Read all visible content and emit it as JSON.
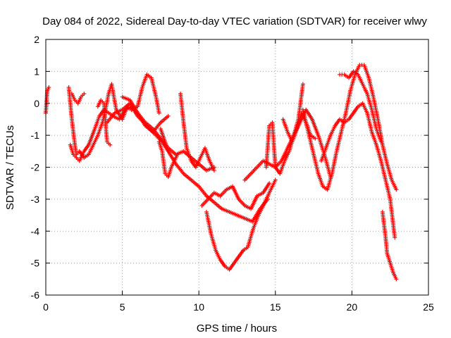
{
  "chart_data": {
    "type": "scatter",
    "title": "Day 084 of 2022, Sidereal Day-to-day VTEC variation (SDTVAR) for receiver wlwy",
    "xlabel": "GPS time / hours",
    "ylabel": "SDTVAR / TECUs",
    "xlim": [
      0,
      25
    ],
    "ylim": [
      -6,
      2
    ],
    "x_ticks": [
      "0",
      "5",
      "10",
      "15",
      "20",
      "25"
    ],
    "y_ticks": [
      "-6",
      "-5",
      "-4",
      "-3",
      "-2",
      "-1",
      "0",
      "1",
      "2"
    ],
    "grid": true,
    "marker": "plus",
    "color": "#ff0000",
    "series": [
      {
        "x": [
          0.0,
          0.1,
          0.2
        ],
        "y": [
          -0.3,
          0.4,
          0.5
        ]
      },
      {
        "x": [
          1.5,
          1.7,
          1.9,
          2.0,
          2.2,
          2.5,
          2.8,
          3.1,
          3.4,
          3.7,
          3.9,
          4.1,
          4.3,
          4.6,
          5.0,
          5.3,
          5.6,
          6.0,
          6.3,
          6.6,
          6.9,
          7.2,
          7.4
        ],
        "y": [
          0.5,
          -0.5,
          -1.3,
          -1.6,
          -1.5,
          -1.7,
          -1.6,
          -1.3,
          -1.0,
          -0.6,
          -0.2,
          0.3,
          0.6,
          -0.2,
          -0.5,
          -0.1,
          -0.2,
          -0.1,
          0.5,
          0.9,
          0.8,
          0.2,
          -0.3
        ]
      },
      {
        "x": [
          1.6,
          1.8,
          2.0,
          2.2,
          2.5,
          2.8,
          3.2,
          3.5,
          3.8,
          4.1,
          4.4,
          4.8,
          5.2,
          5.6,
          6.0,
          6.4,
          6.8,
          7.2,
          7.6,
          8.0
        ],
        "y": [
          -1.3,
          -1.6,
          -1.7,
          -1.8,
          -1.5,
          -1.3,
          -0.8,
          -0.4,
          -0.2,
          -0.3,
          -0.4,
          -0.5,
          -0.2,
          -0.1,
          -0.4,
          -0.6,
          -0.8,
          -1.0,
          -1.2,
          -1.5
        ]
      },
      {
        "x": [
          1.7,
          1.9,
          2.1,
          2.3,
          2.5
        ],
        "y": [
          0.3,
          0.1,
          0.0,
          0.2,
          0.3
        ]
      },
      {
        "x": [
          3.4,
          3.6,
          3.8,
          4.0,
          4.2
        ],
        "y": [
          -0.1,
          0.1,
          0.0,
          -1.2,
          -1.3
        ]
      },
      {
        "x": [
          5.0,
          5.5,
          6.0,
          6.5,
          7.0,
          7.5,
          8.0,
          8.5,
          9.0,
          9.5,
          10.0,
          10.5,
          11.0
        ],
        "y": [
          0.2,
          0.1,
          -0.3,
          -0.6,
          -0.8,
          -1.1,
          -1.4,
          -1.6,
          -1.5,
          -1.7,
          -1.9,
          -2.1,
          -2.0
        ]
      },
      {
        "x": [
          7.4,
          7.6,
          7.8,
          8.0,
          8.2,
          8.4,
          8.6
        ],
        "y": [
          -1.2,
          -1.5,
          -2.2,
          -2.3,
          -2.0,
          -1.8,
          -1.6
        ]
      },
      {
        "x": [
          8.8,
          9.0,
          9.2,
          9.5,
          9.8,
          10.1,
          10.4,
          10.7,
          11.0
        ],
        "y": [
          0.3,
          -0.6,
          -1.4,
          -1.8,
          -2.0,
          -1.7,
          -1.4,
          -1.8,
          -2.1
        ]
      },
      {
        "x": [
          7.5,
          8.0,
          8.5,
          9.0,
          9.5,
          10.0,
          10.5,
          11.0,
          11.5,
          12.0,
          12.5,
          13.0,
          13.5,
          14.0,
          14.5
        ],
        "y": [
          -0.8,
          -1.5,
          -1.9,
          -2.2,
          -2.4,
          -2.6,
          -2.9,
          -3.1,
          -3.3,
          -3.4,
          -3.5,
          -3.6,
          -3.7,
          -3.3,
          -3.0
        ]
      },
      {
        "x": [
          10.5,
          10.8,
          11.1,
          11.4,
          11.7,
          12.0,
          12.3,
          12.6,
          12.9,
          13.2,
          13.5,
          13.8,
          14.1,
          14.4,
          14.7,
          15.0
        ],
        "y": [
          -3.4,
          -4.1,
          -4.6,
          -4.9,
          -5.1,
          -5.2,
          -5.0,
          -4.8,
          -4.6,
          -4.5,
          -4.0,
          -3.6,
          -3.3,
          -3.0,
          -2.7,
          -2.4
        ]
      },
      {
        "x": [
          10.2,
          10.6,
          11.0,
          11.4,
          11.8,
          12.2,
          12.6,
          13.0,
          13.4,
          13.8,
          14.2,
          14.6
        ],
        "y": [
          -3.2,
          -3.0,
          -2.8,
          -2.9,
          -2.7,
          -2.6,
          -3.0,
          -3.2,
          -3.3,
          -2.9,
          -2.8,
          -2.5
        ]
      },
      {
        "x": [
          13.0,
          13.4,
          13.8,
          14.2,
          14.6,
          15.0,
          15.4,
          15.8,
          16.2,
          16.6,
          17.0,
          17.4,
          17.8,
          18.2,
          18.6
        ],
        "y": [
          -2.4,
          -2.2,
          -2.0,
          -1.8,
          -1.9,
          -2.0,
          -1.8,
          -1.4,
          -1.0,
          -0.6,
          -0.2,
          -0.5,
          -1.0,
          -1.6,
          -2.3
        ]
      },
      {
        "x": [
          14.4,
          14.6,
          14.8,
          15.0,
          15.3,
          15.6,
          15.9,
          16.2,
          16.5,
          16.8
        ],
        "y": [
          -2.0,
          -0.7,
          -0.6,
          -2.0,
          -2.2,
          -1.8,
          -1.5,
          -1.0,
          -0.5,
          0.6
        ]
      },
      {
        "x": [
          16.8,
          17.0,
          17.2,
          17.5,
          17.8,
          18.1,
          18.4,
          18.7,
          19.0,
          19.3,
          19.6,
          19.9,
          20.2,
          20.5,
          20.8,
          21.1,
          21.4,
          21.7,
          22.0,
          22.3,
          22.6,
          22.9
        ],
        "y": [
          -0.2,
          -0.6,
          -1.0,
          -1.6,
          -2.2,
          -2.6,
          -2.7,
          -2.2,
          -1.5,
          -0.9,
          -0.3,
          0.4,
          0.9,
          1.2,
          1.2,
          0.8,
          0.2,
          -0.5,
          -1.3,
          -1.9,
          -2.4,
          -2.7
        ]
      },
      {
        "x": [
          18.0,
          18.3,
          18.6,
          18.9,
          19.2,
          19.5,
          19.8,
          20.1,
          20.4,
          20.7,
          21.0,
          21.3,
          21.6,
          21.9,
          22.2,
          22.5,
          22.8
        ],
        "y": [
          -1.8,
          -1.4,
          -1.0,
          -0.7,
          -0.5,
          -0.6,
          -0.5,
          -0.3,
          -0.1,
          0.0,
          -0.3,
          -0.9,
          -1.3,
          -1.8,
          -2.4,
          -3.0,
          -4.2
        ]
      },
      {
        "x": [
          19.2,
          19.5,
          19.8,
          20.1,
          20.4,
          20.7,
          21.0,
          21.3,
          21.6,
          21.9
        ],
        "y": [
          0.9,
          0.9,
          0.8,
          1.0,
          0.9,
          0.6,
          0.3,
          -0.2,
          -0.8,
          -1.2
        ]
      },
      {
        "x": [
          22.0,
          22.1,
          22.2,
          22.3,
          22.5,
          22.7,
          22.9
        ],
        "y": [
          -3.4,
          -3.8,
          -4.2,
          -4.7,
          -5.0,
          -5.3,
          -5.5
        ]
      },
      {
        "x": [
          15.5,
          15.8,
          16.1,
          16.4,
          16.7,
          17.0,
          17.3,
          17.6
        ],
        "y": [
          -0.5,
          -0.9,
          -1.2,
          -0.8,
          -0.3,
          -0.6,
          -1.0,
          -1.1
        ]
      },
      {
        "x": [
          4.0,
          4.5,
          5.0,
          5.5,
          6.0,
          6.5,
          7.0,
          7.5,
          8.0
        ],
        "y": [
          -0.6,
          -0.3,
          -0.2,
          0.0,
          -0.3,
          -0.7,
          -0.9,
          -0.6,
          -0.4
        ]
      }
    ]
  }
}
